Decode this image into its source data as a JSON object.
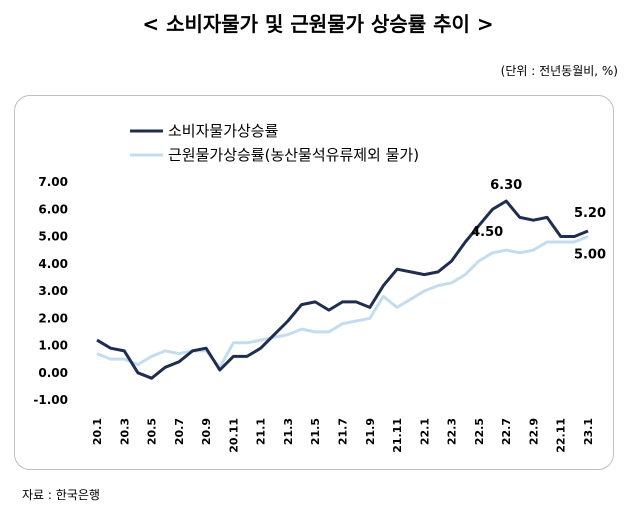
{
  "header": {
    "title": "< 소비자물가 및 근원물가 상승률 추이 >",
    "unit": "(단위 : 전년동월비, %)"
  },
  "footer": {
    "source": "자료 : 한국은행"
  },
  "chart_data": {
    "type": "line",
    "title": "",
    "xlabel": "",
    "ylabel": "",
    "ylim": [
      -1.0,
      7.0
    ],
    "y_ticks": [
      "7.00",
      "6.00",
      "5.00",
      "4.00",
      "3.00",
      "2.00",
      "1.00",
      "0.00",
      "-1.00"
    ],
    "x": [
      "20.1",
      "20.2",
      "20.3",
      "20.4",
      "20.5",
      "20.6",
      "20.7",
      "20.8",
      "20.9",
      "20.10",
      "20.11",
      "20.12",
      "21.1",
      "21.2",
      "21.3",
      "21.4",
      "21.5",
      "21.6",
      "21.7",
      "21.8",
      "21.9",
      "21.10",
      "21.11",
      "21.12",
      "22.1",
      "22.2",
      "22.3",
      "22.4",
      "22.5",
      "22.6",
      "22.7",
      "22.8",
      "22.9",
      "22.10",
      "22.11",
      "22.12",
      "23.1"
    ],
    "x_tick_labels": [
      "20.1",
      "20.3",
      "20.5",
      "20.7",
      "20.9",
      "20.11",
      "21.1",
      "21.3",
      "21.5",
      "21.7",
      "21.9",
      "21.11",
      "22.1",
      "22.3",
      "22.5",
      "22.7",
      "22.9",
      "22.11",
      "23.1"
    ],
    "legend_position": "top-left",
    "grid": false,
    "series": [
      {
        "name": "소비자물가상승률",
        "color": "#1f2d4f",
        "values": [
          1.2,
          0.9,
          0.8,
          0.0,
          -0.2,
          0.2,
          0.4,
          0.8,
          0.9,
          0.1,
          0.6,
          0.6,
          0.9,
          1.4,
          1.9,
          2.5,
          2.6,
          2.3,
          2.6,
          2.6,
          2.4,
          3.2,
          3.8,
          3.7,
          3.6,
          3.7,
          4.1,
          4.8,
          5.4,
          6.0,
          6.3,
          5.7,
          5.6,
          5.7,
          5.0,
          5.0,
          5.2
        ]
      },
      {
        "name": "근원물가상승률(농산물석유류제외 물가)",
        "color": "#c5dcef",
        "values": [
          0.7,
          0.5,
          0.5,
          0.3,
          0.6,
          0.8,
          0.7,
          0.8,
          0.8,
          0.2,
          1.1,
          1.1,
          1.2,
          1.3,
          1.4,
          1.6,
          1.5,
          1.5,
          1.8,
          1.9,
          2.0,
          2.8,
          2.4,
          2.7,
          3.0,
          3.2,
          3.3,
          3.6,
          4.1,
          4.4,
          4.5,
          4.4,
          4.5,
          4.8,
          4.8,
          4.8,
          5.0
        ]
      }
    ],
    "annotations": [
      {
        "text": "6.30",
        "x": "22.7",
        "y": 6.3,
        "series": 0
      },
      {
        "text": "5.20",
        "x": "23.1",
        "y": 5.2,
        "series": 0
      },
      {
        "text": "4.50",
        "x": "22.7",
        "y": 4.5,
        "series": 1
      },
      {
        "text": "5.00",
        "x": "23.1",
        "y": 5.0,
        "series": 1
      }
    ]
  }
}
